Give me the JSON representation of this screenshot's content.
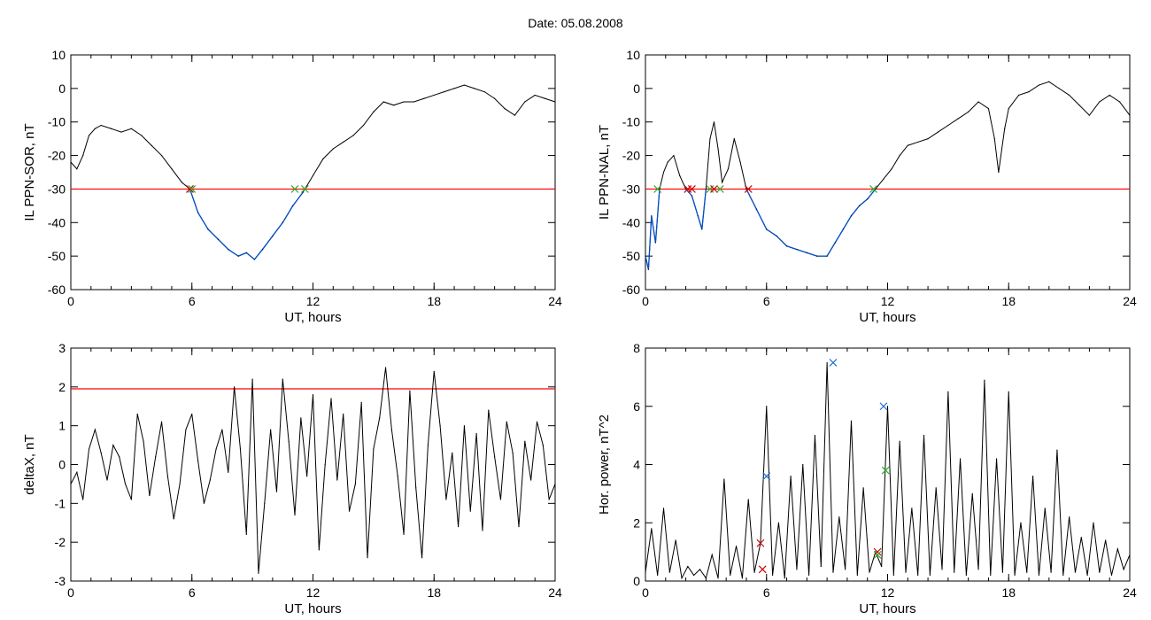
{
  "figure_title": "Date:  05.08.2008",
  "colors": {
    "threshold": "#ff0000",
    "below_threshold": "#0050c8",
    "trace": "#000000",
    "cross_red": "#cc0000",
    "cross_green": "#33aa33",
    "cross_blue": "#1f6fd0"
  },
  "chart_data": [
    {
      "type": "line",
      "xlabel": "UT, hours",
      "ylabel": "IL PPN-SOR, nT",
      "xlim": [
        0,
        24
      ],
      "ylim": [
        -60,
        10
      ],
      "xticks": [
        0,
        6,
        12,
        18,
        24
      ],
      "yticks": [
        10,
        0,
        -10,
        -20,
        -30,
        -40,
        -50,
        -60
      ],
      "threshold": -30,
      "series": [
        {
          "x": [
            0,
            0.3,
            0.6,
            0.9,
            1.2,
            1.5,
            2.0,
            2.5,
            3.0,
            3.5,
            4.0,
            4.5,
            5.0,
            5.5,
            5.9,
            6.3,
            6.8,
            7.3,
            7.8,
            8.3,
            8.7,
            9.1,
            9.5,
            10.0,
            10.5,
            11.0,
            11.5,
            12.0,
            12.5,
            13.0,
            13.5,
            14.0,
            14.5,
            15.0,
            15.5,
            16.0,
            16.5,
            17.0,
            17.5,
            18.0,
            18.5,
            19.0,
            19.5,
            20.0,
            20.5,
            21.0,
            21.5,
            22.0,
            22.5,
            23.0,
            23.5,
            24.0
          ],
          "y": [
            -22,
            -24,
            -20,
            -14,
            -12,
            -11,
            -12,
            -13,
            -12,
            -14,
            -17,
            -20,
            -24,
            -28,
            -30,
            -37,
            -42,
            -45,
            -48,
            -50,
            -49,
            -51,
            -48,
            -44,
            -40,
            -35,
            -31,
            -26,
            -21,
            -18,
            -16,
            -14,
            -11,
            -7,
            -4,
            -5,
            -4,
            -4,
            -3,
            -2,
            -1,
            0,
            1,
            0,
            -1,
            -3,
            -6,
            -8,
            -4,
            -2,
            -3,
            -4
          ]
        }
      ],
      "crosses": [
        {
          "x": 5.9,
          "y": -30,
          "color": "red"
        },
        {
          "x": 6.0,
          "y": -30,
          "color": "green"
        },
        {
          "x": 11.1,
          "y": -30,
          "color": "green"
        },
        {
          "x": 11.6,
          "y": -30,
          "color": "green"
        }
      ]
    },
    {
      "type": "line",
      "xlabel": "UT, hours",
      "ylabel": "IL PPN-NAL, nT",
      "xlim": [
        0,
        24
      ],
      "ylim": [
        -60,
        10
      ],
      "xticks": [
        0,
        6,
        12,
        18,
        24
      ],
      "yticks": [
        10,
        0,
        -10,
        -20,
        -30,
        -40,
        -50,
        -60
      ],
      "threshold": -30,
      "series": [
        {
          "x": [
            0,
            0.15,
            0.3,
            0.5,
            0.7,
            0.9,
            1.1,
            1.4,
            1.7,
            2.0,
            2.3,
            2.6,
            2.8,
            3.0,
            3.2,
            3.4,
            3.6,
            3.8,
            4.1,
            4.4,
            4.7,
            5.0,
            5.5,
            6.0,
            6.5,
            7.0,
            7.5,
            8.0,
            8.5,
            9.0,
            9.4,
            9.8,
            10.2,
            10.6,
            11.0,
            11.4,
            11.8,
            12.2,
            12.6,
            13.0,
            13.5,
            14.0,
            14.5,
            15.0,
            15.5,
            16.0,
            16.5,
            17.0,
            17.3,
            17.5,
            17.8,
            18.0,
            18.5,
            19.0,
            19.5,
            20.0,
            20.5,
            21.0,
            21.5,
            22.0,
            22.5,
            23.0,
            23.5,
            24.0
          ],
          "y": [
            -50,
            -54,
            -38,
            -46,
            -30,
            -25,
            -22,
            -20,
            -26,
            -30,
            -32,
            -38,
            -42,
            -30,
            -15,
            -10,
            -18,
            -28,
            -24,
            -15,
            -22,
            -30,
            -36,
            -42,
            -44,
            -47,
            -48,
            -49,
            -50,
            -50,
            -46,
            -42,
            -38,
            -35,
            -33,
            -30,
            -27,
            -24,
            -20,
            -17,
            -16,
            -15,
            -13,
            -11,
            -9,
            -7,
            -4,
            -6,
            -15,
            -25,
            -12,
            -6,
            -2,
            -1,
            1,
            2,
            0,
            -2,
            -5,
            -8,
            -4,
            -2,
            -4,
            -8
          ]
        }
      ],
      "crosses": [
        {
          "x": 0.6,
          "y": -30,
          "color": "green"
        },
        {
          "x": 2.1,
          "y": -30,
          "color": "red"
        },
        {
          "x": 2.3,
          "y": -30,
          "color": "red"
        },
        {
          "x": 3.2,
          "y": -30,
          "color": "green"
        },
        {
          "x": 3.4,
          "y": -30,
          "color": "red"
        },
        {
          "x": 3.7,
          "y": -30,
          "color": "green"
        },
        {
          "x": 5.1,
          "y": -30,
          "color": "red"
        },
        {
          "x": 11.3,
          "y": -30,
          "color": "green"
        }
      ]
    },
    {
      "type": "line",
      "xlabel": "UT, hours",
      "ylabel": "deltaX, nT",
      "xlim": [
        0,
        24
      ],
      "ylim": [
        -3,
        3
      ],
      "xticks": [
        0,
        6,
        12,
        18,
        24
      ],
      "yticks": [
        3,
        2,
        1,
        0,
        -1,
        -2,
        -3
      ],
      "threshold": 1.95,
      "series": [
        {
          "x": [
            0,
            0.3,
            0.6,
            0.9,
            1.2,
            1.5,
            1.8,
            2.1,
            2.4,
            2.7,
            3.0,
            3.3,
            3.6,
            3.9,
            4.2,
            4.5,
            4.8,
            5.1,
            5.4,
            5.7,
            6.0,
            6.3,
            6.6,
            6.9,
            7.2,
            7.5,
            7.8,
            8.1,
            8.4,
            8.7,
            9.0,
            9.3,
            9.6,
            9.9,
            10.2,
            10.5,
            10.8,
            11.1,
            11.4,
            11.7,
            12.0,
            12.3,
            12.6,
            12.9,
            13.2,
            13.5,
            13.8,
            14.1,
            14.4,
            14.7,
            15.0,
            15.3,
            15.6,
            15.9,
            16.2,
            16.5,
            16.8,
            17.1,
            17.4,
            17.7,
            18.0,
            18.3,
            18.6,
            18.9,
            19.2,
            19.5,
            19.8,
            20.1,
            20.4,
            20.7,
            21.0,
            21.3,
            21.6,
            21.9,
            22.2,
            22.5,
            22.8,
            23.1,
            23.4,
            23.7,
            24.0
          ],
          "y": [
            -0.5,
            -0.2,
            -0.9,
            0.4,
            0.9,
            0.3,
            -0.4,
            0.5,
            0.2,
            -0.5,
            -0.9,
            1.3,
            0.6,
            -0.8,
            0.2,
            1.1,
            -0.3,
            -1.4,
            -0.5,
            0.9,
            1.3,
            0.1,
            -1.0,
            -0.4,
            0.4,
            0.9,
            -0.2,
            2.0,
            0.4,
            -1.8,
            2.2,
            -2.8,
            -1.0,
            0.9,
            -0.7,
            2.2,
            0.6,
            -1.3,
            1.2,
            -0.3,
            1.8,
            -2.2,
            0.0,
            1.7,
            -0.4,
            1.3,
            -1.2,
            -0.5,
            1.6,
            -2.4,
            0.4,
            1.2,
            2.5,
            0.9,
            -0.3,
            -1.8,
            1.9,
            -0.6,
            -2.4,
            0.5,
            2.4,
            1.0,
            -0.9,
            0.3,
            -1.6,
            1.0,
            -1.2,
            0.8,
            -1.7,
            1.4,
            0.2,
            -0.9,
            1.1,
            0.3,
            -1.6,
            0.6,
            -0.4,
            1.1,
            0.5,
            -0.9,
            -0.5
          ]
        }
      ]
    },
    {
      "type": "line",
      "xlabel": "UT, hours",
      "ylabel": "Hor. power, nT^2",
      "xlim": [
        0,
        24
      ],
      "ylim": [
        0,
        8
      ],
      "xticks": [
        0,
        6,
        12,
        18,
        24
      ],
      "yticks": [
        8,
        6,
        4,
        2,
        0
      ],
      "series": [
        {
          "x": [
            0,
            0.3,
            0.6,
            0.9,
            1.2,
            1.5,
            1.8,
            2.1,
            2.4,
            2.7,
            3.0,
            3.3,
            3.6,
            3.9,
            4.2,
            4.5,
            4.8,
            5.1,
            5.4,
            5.7,
            6.0,
            6.3,
            6.6,
            6.9,
            7.2,
            7.5,
            7.8,
            8.1,
            8.4,
            8.7,
            9.0,
            9.3,
            9.6,
            9.9,
            10.2,
            10.5,
            10.8,
            11.1,
            11.4,
            11.7,
            12.0,
            12.3,
            12.6,
            12.9,
            13.2,
            13.5,
            13.8,
            14.1,
            14.4,
            14.7,
            15.0,
            15.3,
            15.6,
            15.9,
            16.2,
            16.5,
            16.8,
            17.1,
            17.4,
            17.7,
            18.0,
            18.3,
            18.6,
            18.9,
            19.2,
            19.5,
            19.8,
            20.1,
            20.4,
            20.7,
            21.0,
            21.3,
            21.6,
            21.9,
            22.2,
            22.5,
            22.8,
            23.1,
            23.4,
            23.7,
            24.0
          ],
          "y": [
            0.3,
            1.8,
            0.2,
            2.5,
            0.3,
            1.4,
            0.1,
            0.5,
            0.2,
            0.4,
            0.1,
            0.9,
            0.1,
            3.5,
            0.2,
            1.2,
            0.1,
            2.8,
            0.3,
            1.3,
            6.0,
            0.2,
            2.0,
            0.1,
            3.6,
            0.4,
            4.0,
            0.2,
            5.0,
            0.5,
            7.5,
            0.3,
            2.2,
            0.4,
            5.5,
            0.2,
            3.2,
            0.3,
            1.0,
            0.5,
            6.0,
            0.2,
            4.8,
            0.3,
            2.5,
            0.2,
            5.0,
            0.2,
            3.2,
            0.4,
            6.5,
            0.3,
            4.2,
            0.2,
            3.0,
            0.4,
            6.9,
            0.2,
            4.2,
            0.3,
            6.5,
            0.2,
            2.0,
            0.3,
            3.6,
            0.2,
            2.5,
            0.3,
            4.5,
            0.2,
            2.2,
            0.3,
            1.5,
            0.2,
            2.0,
            0.3,
            1.4,
            0.2,
            1.1,
            0.4,
            0.9
          ]
        }
      ],
      "crosses": [
        {
          "x": 6.0,
          "y": 3.6,
          "color": "blue"
        },
        {
          "x": 9.3,
          "y": 7.5,
          "color": "blue"
        },
        {
          "x": 11.8,
          "y": 6.0,
          "color": "blue"
        },
        {
          "x": 5.7,
          "y": 1.3,
          "color": "red"
        },
        {
          "x": 5.8,
          "y": 0.4,
          "color": "red"
        },
        {
          "x": 11.5,
          "y": 1.0,
          "color": "red"
        },
        {
          "x": 11.5,
          "y": 0.9,
          "color": "green"
        },
        {
          "x": 11.9,
          "y": 3.8,
          "color": "green"
        }
      ]
    }
  ]
}
